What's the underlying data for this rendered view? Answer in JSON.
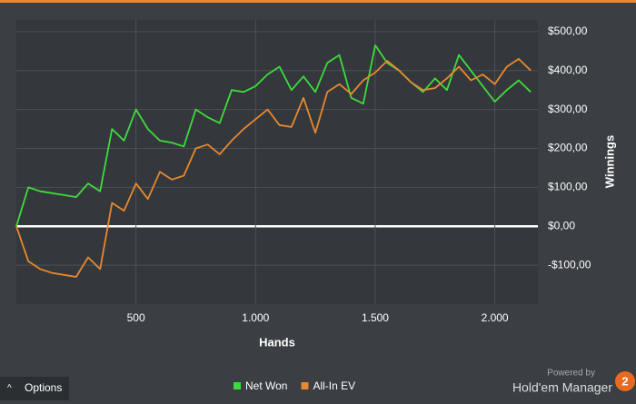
{
  "chart_data": {
    "type": "line",
    "xlabel": "Hands",
    "ylabel": "Winnings",
    "x": [
      0,
      50,
      100,
      150,
      200,
      250,
      300,
      350,
      400,
      450,
      500,
      550,
      600,
      650,
      700,
      750,
      800,
      850,
      900,
      950,
      1000,
      1050,
      1100,
      1150,
      1200,
      1250,
      1300,
      1350,
      1400,
      1450,
      1500,
      1550,
      1600,
      1650,
      1700,
      1750,
      1800,
      1850,
      1900,
      1950,
      2000,
      2050,
      2100,
      2150
    ],
    "series": [
      {
        "name": "Net Won",
        "color": "#3ddc3d",
        "values": [
          0,
          100,
          90,
          85,
          80,
          75,
          110,
          90,
          250,
          220,
          300,
          250,
          220,
          215,
          205,
          300,
          280,
          265,
          350,
          345,
          360,
          390,
          410,
          350,
          385,
          345,
          420,
          440,
          330,
          315,
          465,
          420,
          400,
          370,
          345,
          380,
          350,
          440,
          400,
          360,
          320,
          350,
          375,
          345
        ]
      },
      {
        "name": "All-In EV",
        "color": "#e8892f",
        "values": [
          0,
          -90,
          -110,
          -120,
          -125,
          -130,
          -80,
          -110,
          60,
          40,
          110,
          70,
          140,
          120,
          130,
          200,
          210,
          185,
          220,
          250,
          275,
          300,
          260,
          255,
          330,
          240,
          345,
          365,
          340,
          375,
          395,
          425,
          400,
          370,
          350,
          355,
          380,
          410,
          375,
          390,
          365,
          410,
          430,
          400
        ]
      }
    ],
    "xlim": [
      0,
      2180
    ],
    "ylim": [
      -200,
      530
    ],
    "xticks": [
      500,
      {
        "value": 1000,
        "label": "1.000"
      },
      {
        "value": 1500,
        "label": "1.500"
      },
      {
        "value": 2000,
        "label": "2.000"
      }
    ],
    "yticks": [
      {
        "value": -100,
        "label": "-$100,00"
      },
      {
        "value": 0,
        "label": "$0,00"
      },
      {
        "value": 100,
        "label": "$100,00"
      },
      {
        "value": 200,
        "label": "$200,00"
      },
      {
        "value": 300,
        "label": "$300,00"
      },
      {
        "value": 400,
        "label": "$400,00"
      },
      {
        "value": 500,
        "label": "$500,00"
      }
    ],
    "grid": true
  },
  "footer": {
    "options": "Options",
    "powered_by": "Powered by",
    "brand": "Hold'em Manager",
    "logo": "2"
  }
}
